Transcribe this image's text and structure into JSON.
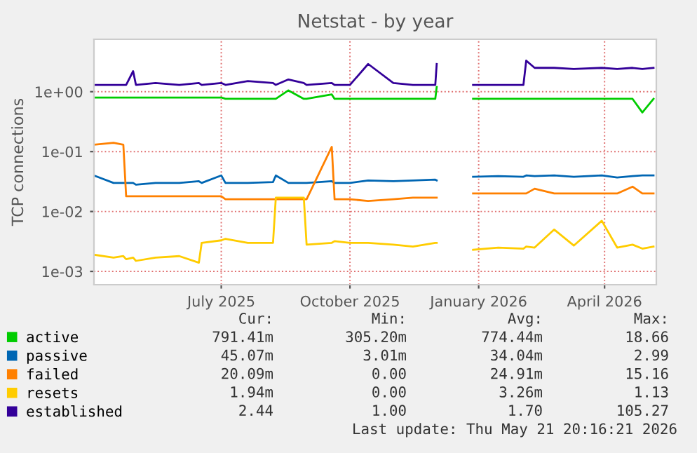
{
  "chart_data": {
    "type": "line",
    "title": "Netstat - by year",
    "ylabel": "TCP connections",
    "log": "y",
    "grid": true,
    "legend": "bottom",
    "marker": "none",
    "line_style": "solid",
    "x": [
      "2025-04-01",
      "2025-04-15",
      "2025-04-22",
      "2025-04-24",
      "2025-04-29",
      "2025-05-01",
      "2025-05-15",
      "2025-06-01",
      "2025-06-15",
      "2025-06-17",
      "2025-07-01",
      "2025-07-04",
      "2025-07-20",
      "2025-08-07",
      "2025-08-09",
      "2025-08-18",
      "2025-08-29",
      "2025-08-31",
      "2025-09-18",
      "2025-09-20",
      "2025-10-01",
      "2025-10-14",
      "2025-11-01",
      "2025-11-15",
      "2025-12-01",
      "2025-12-02",
      "2025-12-03",
      "2025-12-28",
      "2026-01-15",
      "2026-02-02",
      "2026-02-04",
      "2026-02-10",
      "2026-02-24",
      "2026-03-10",
      "2026-03-30",
      "2026-04-10",
      "2026-04-21",
      "2026-04-28",
      "2026-05-06"
    ],
    "series": [
      {
        "name": "active",
        "color": "#00cc00",
        "values": [
          0.8,
          0.8,
          0.8,
          0.8,
          0.8,
          0.8,
          0.8,
          0.8,
          0.8,
          0.8,
          0.8,
          0.76,
          0.76,
          0.76,
          0.76,
          1.05,
          0.76,
          0.76,
          0.9,
          0.76,
          0.76,
          0.76,
          0.76,
          0.76,
          0.76,
          1.2,
          null,
          0.76,
          0.76,
          0.76,
          0.76,
          0.76,
          0.76,
          0.76,
          0.76,
          0.76,
          0.76,
          0.45,
          0.76
        ]
      },
      {
        "name": "passive",
        "color": "#0066b3",
        "values": [
          0.04,
          0.03,
          0.03,
          0.03,
          0.03,
          0.028,
          0.03,
          0.03,
          0.032,
          0.03,
          0.04,
          0.03,
          0.03,
          0.031,
          0.04,
          0.03,
          0.03,
          0.03,
          0.032,
          0.03,
          0.03,
          0.033,
          0.032,
          0.033,
          0.034,
          0.033,
          null,
          0.038,
          0.039,
          0.038,
          0.04,
          0.039,
          0.04,
          0.038,
          0.04,
          0.037,
          0.039,
          0.04,
          0.04
        ]
      },
      {
        "name": "failed",
        "color": "#ff8000",
        "values": [
          0.13,
          0.14,
          0.13,
          0.018,
          0.018,
          0.018,
          0.018,
          0.018,
          0.018,
          0.018,
          0.018,
          0.016,
          0.016,
          0.016,
          0.016,
          0.016,
          0.016,
          0.016,
          0.12,
          0.016,
          0.016,
          0.015,
          0.016,
          0.017,
          0.017,
          0.017,
          null,
          0.02,
          0.02,
          0.02,
          0.02,
          0.024,
          0.02,
          0.02,
          0.02,
          0.02,
          0.026,
          0.02,
          0.02
        ]
      },
      {
        "name": "resets",
        "color": "#ffcc00",
        "values": [
          0.0019,
          0.0017,
          0.0018,
          0.0016,
          0.0017,
          0.0015,
          0.0017,
          0.0018,
          0.0014,
          0.003,
          0.0033,
          0.0035,
          0.003,
          0.003,
          0.017,
          0.017,
          0.017,
          0.0028,
          0.003,
          0.0032,
          0.003,
          0.003,
          0.0028,
          0.0026,
          0.003,
          0.003,
          null,
          0.0023,
          0.0025,
          0.0024,
          0.0026,
          0.0025,
          0.005,
          0.0027,
          0.007,
          0.0025,
          0.0028,
          0.0024,
          0.0026
        ]
      },
      {
        "name": "established",
        "color": "#330099",
        "values": [
          1.3,
          1.3,
          1.3,
          1.3,
          2.2,
          1.3,
          1.4,
          1.3,
          1.4,
          1.3,
          1.4,
          1.3,
          1.5,
          1.4,
          1.3,
          1.6,
          1.4,
          1.3,
          1.4,
          1.3,
          1.3,
          2.9,
          1.4,
          1.3,
          1.3,
          2.9,
          null,
          1.3,
          1.3,
          1.3,
          3.3,
          2.5,
          2.5,
          2.4,
          2.5,
          2.4,
          2.5,
          2.4,
          2.5
        ]
      }
    ],
    "xlim": [
      "2025-04-01",
      "2026-05-08"
    ],
    "xticks": [
      {
        "value": "2025-07-01",
        "label": "July 2025"
      },
      {
        "value": "2025-10-01",
        "label": "October 2025"
      },
      {
        "value": "2026-01-01",
        "label": "January 2026"
      },
      {
        "value": "2026-04-01",
        "label": "April 2026"
      }
    ],
    "ylim": [
      0.0006,
      7.5
    ],
    "yticks": [
      {
        "value": 0.001,
        "label": "1e-03"
      },
      {
        "value": 0.01,
        "label": "1e-02"
      },
      {
        "value": 0.1,
        "label": "1e-01"
      },
      {
        "value": 1,
        "label": "1e+00"
      }
    ],
    "annotations": [
      "Cur:",
      "Min:",
      "Avg:",
      "Max:",
      "791.41m",
      "305.20m",
      "774.44m",
      "18.66",
      "45.07m",
      "3.01m",
      "34.04m",
      "2.99",
      "20.09m",
      "0.00",
      "24.91m",
      "15.16",
      "1.94m",
      "0.00",
      "3.26m",
      "1.13",
      "2.44",
      "1.00",
      "1.70",
      "105.27",
      "Last update: Thu May 21 20:16:21 2026"
    ]
  }
}
